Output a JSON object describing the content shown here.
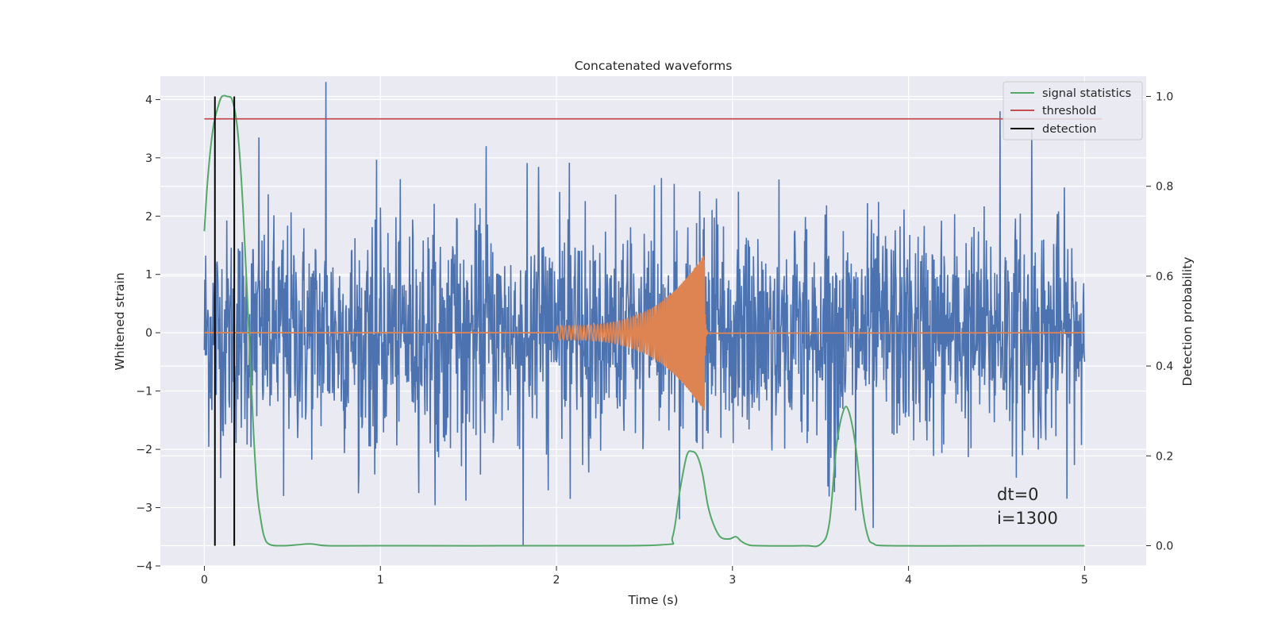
{
  "colors": {
    "background": "#eaeaf2",
    "grid": "#ffffff",
    "strain": "#4c72b0",
    "template": "#dd8452",
    "signal_statistics": "#55a868",
    "threshold": "#c44e52",
    "detection": "#000000"
  },
  "chart_data": {
    "type": "line",
    "title": "Concatenated waveforms",
    "xlabel": "Time (s)",
    "ylabel_left": "Whitened strain",
    "ylabel_right": "Detection probability",
    "xlim": [
      -0.25,
      5.35
    ],
    "ylim_left": [
      -4.0,
      4.4
    ],
    "ylim_right": [
      -0.045,
      1.045
    ],
    "xticks": [
      0,
      1,
      2,
      3,
      4,
      5
    ],
    "xtick_labels": [
      "0",
      "1",
      "2",
      "3",
      "4",
      "5"
    ],
    "yticks_left": [
      -4,
      -3,
      -2,
      -1,
      0,
      1,
      2,
      3,
      4
    ],
    "ytick_labels_left": [
      "−4",
      "−3",
      "−2",
      "−1",
      "0",
      "1",
      "2",
      "3",
      "4"
    ],
    "yticks_right": [
      0.0,
      0.2,
      0.4,
      0.6,
      0.8,
      1.0
    ],
    "ytick_labels_right": [
      "0.0",
      "0.2",
      "0.4",
      "0.6",
      "0.8",
      "1.0"
    ],
    "grid": true,
    "legend": {
      "position": "top-right",
      "entries": [
        "signal statistics",
        "threshold",
        "detection"
      ]
    },
    "strain_noise": {
      "x_range": [
        0,
        5
      ],
      "n_points": 2000,
      "approx_std": 1.0,
      "spikes": [
        {
          "x": 0.69,
          "y": 4.3
        },
        {
          "x": 0.31,
          "y": 3.35
        },
        {
          "x": 1.6,
          "y": 3.2
        },
        {
          "x": 4.52,
          "y": 3.8
        },
        {
          "x": 4.7,
          "y": 3.5
        },
        {
          "x": 1.81,
          "y": -3.65
        },
        {
          "x": 3.8,
          "y": -3.35
        },
        {
          "x": 0.45,
          "y": -2.8
        },
        {
          "x": 2.7,
          "y": -3.2
        },
        {
          "x": 3.7,
          "y": -3.05
        }
      ]
    },
    "template_chirp": {
      "x_start": 2.0,
      "x_merger": 2.84,
      "amp_start": 0.12,
      "amp_peak": 1.35
    },
    "signal_statistics": {
      "x": [
        0,
        0.02,
        0.05,
        0.08,
        0.1,
        0.13,
        0.16,
        0.19,
        0.22,
        0.25,
        0.28,
        0.3,
        0.32,
        0.34,
        0.37,
        0.45,
        0.6,
        0.7,
        1.0,
        2.0,
        2.6,
        2.66,
        2.7,
        2.74,
        2.77,
        2.8,
        2.83,
        2.86,
        2.89,
        2.93,
        2.98,
        3.02,
        3.05,
        3.09,
        3.15,
        3.4,
        3.5,
        3.55,
        3.59,
        3.63,
        3.66,
        3.7,
        3.74,
        3.77,
        3.8,
        3.9,
        4.5,
        5.0
      ],
      "y": [
        0.7,
        0.82,
        0.93,
        0.98,
        1.0,
        1.0,
        0.99,
        0.92,
        0.75,
        0.5,
        0.25,
        0.12,
        0.06,
        0.02,
        0.003,
        0.0,
        0.004,
        0.0,
        0.0,
        0.0,
        0.002,
        0.02,
        0.12,
        0.2,
        0.21,
        0.2,
        0.16,
        0.09,
        0.05,
        0.02,
        0.015,
        0.02,
        0.01,
        0.002,
        0.0,
        0.0,
        0.003,
        0.05,
        0.22,
        0.3,
        0.3,
        0.22,
        0.08,
        0.02,
        0.005,
        0.0,
        0.0,
        0.0
      ]
    },
    "threshold": {
      "y": 0.95,
      "x_range": [
        0,
        5.1
      ]
    },
    "detections": [
      0.06,
      0.17
    ],
    "annotations": [
      "dt=0",
      "i=1300"
    ]
  }
}
